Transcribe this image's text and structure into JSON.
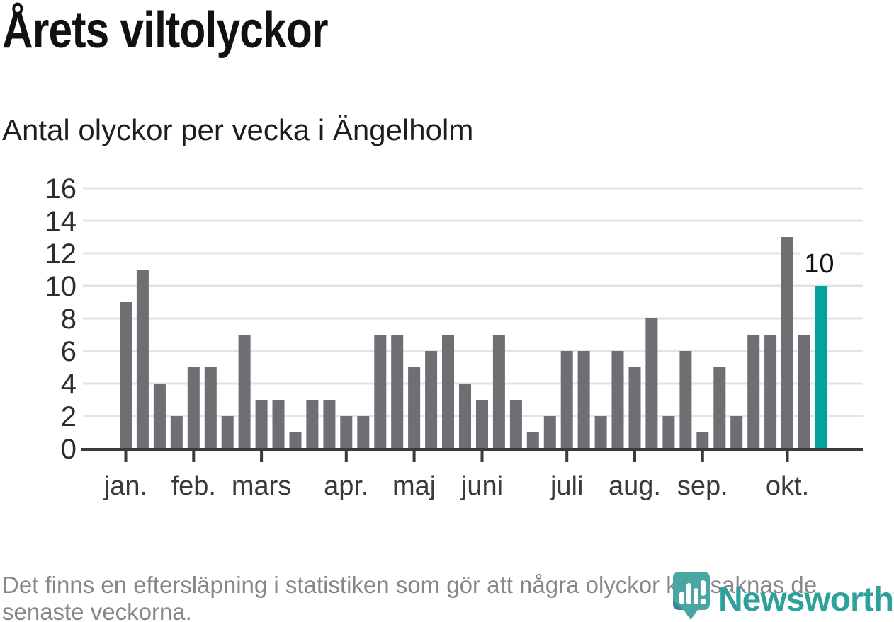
{
  "page": {
    "title": "Årets viltolyckor",
    "subtitle": "Antal olyckor per vecka i Ängelholm"
  },
  "chart_data": {
    "type": "bar",
    "title": "Årets viltolyckor",
    "subtitle": "Antal olyckor per vecka i Ängelholm",
    "x_unit": "vecka",
    "values": [
      9,
      11,
      4,
      2,
      5,
      5,
      2,
      7,
      3,
      3,
      1,
      3,
      3,
      2,
      2,
      7,
      7,
      5,
      6,
      7,
      4,
      3,
      7,
      3,
      1,
      2,
      6,
      6,
      2,
      6,
      5,
      8,
      2,
      6,
      1,
      5,
      2,
      7,
      7,
      13,
      7,
      10
    ],
    "ylim": [
      0,
      16
    ],
    "yticks": [
      0,
      2,
      4,
      6,
      8,
      10,
      12,
      14,
      16
    ],
    "grid": true,
    "legend_position": "none",
    "months": [
      {
        "label": "jan.",
        "week": 1
      },
      {
        "label": "feb.",
        "week": 5
      },
      {
        "label": "mars",
        "week": 9
      },
      {
        "label": "apr.",
        "week": 14
      },
      {
        "label": "maj",
        "week": 18
      },
      {
        "label": "juni",
        "week": 22
      },
      {
        "label": "juli",
        "week": 27
      },
      {
        "label": "aug.",
        "week": 31
      },
      {
        "label": "sep.",
        "week": 35
      },
      {
        "label": "okt.",
        "week": 40
      }
    ],
    "highlight_last_bar": true,
    "last_value_label": "10"
  },
  "colors": {
    "bar": "#6e6e73",
    "highlight": "#00a39b",
    "axis": "#3a3a3a",
    "grid": "#e3e3e5",
    "y_label": "#2d2d2d",
    "month_label": "#3a3a3a",
    "annotation": "#111111",
    "title": "#111111",
    "footer_text": "#86868b",
    "logo_teal": "#2da19b",
    "logo_bubble": "#4aa6a2",
    "logo_fold": "#3d7f9e"
  },
  "footer": {
    "lines": [
      "Det finns en eftersläpning i statistiken som gör att några olyckor kan saknas de",
      "senaste veckorna."
    ]
  },
  "logo": {
    "text": "Newsworthy"
  }
}
